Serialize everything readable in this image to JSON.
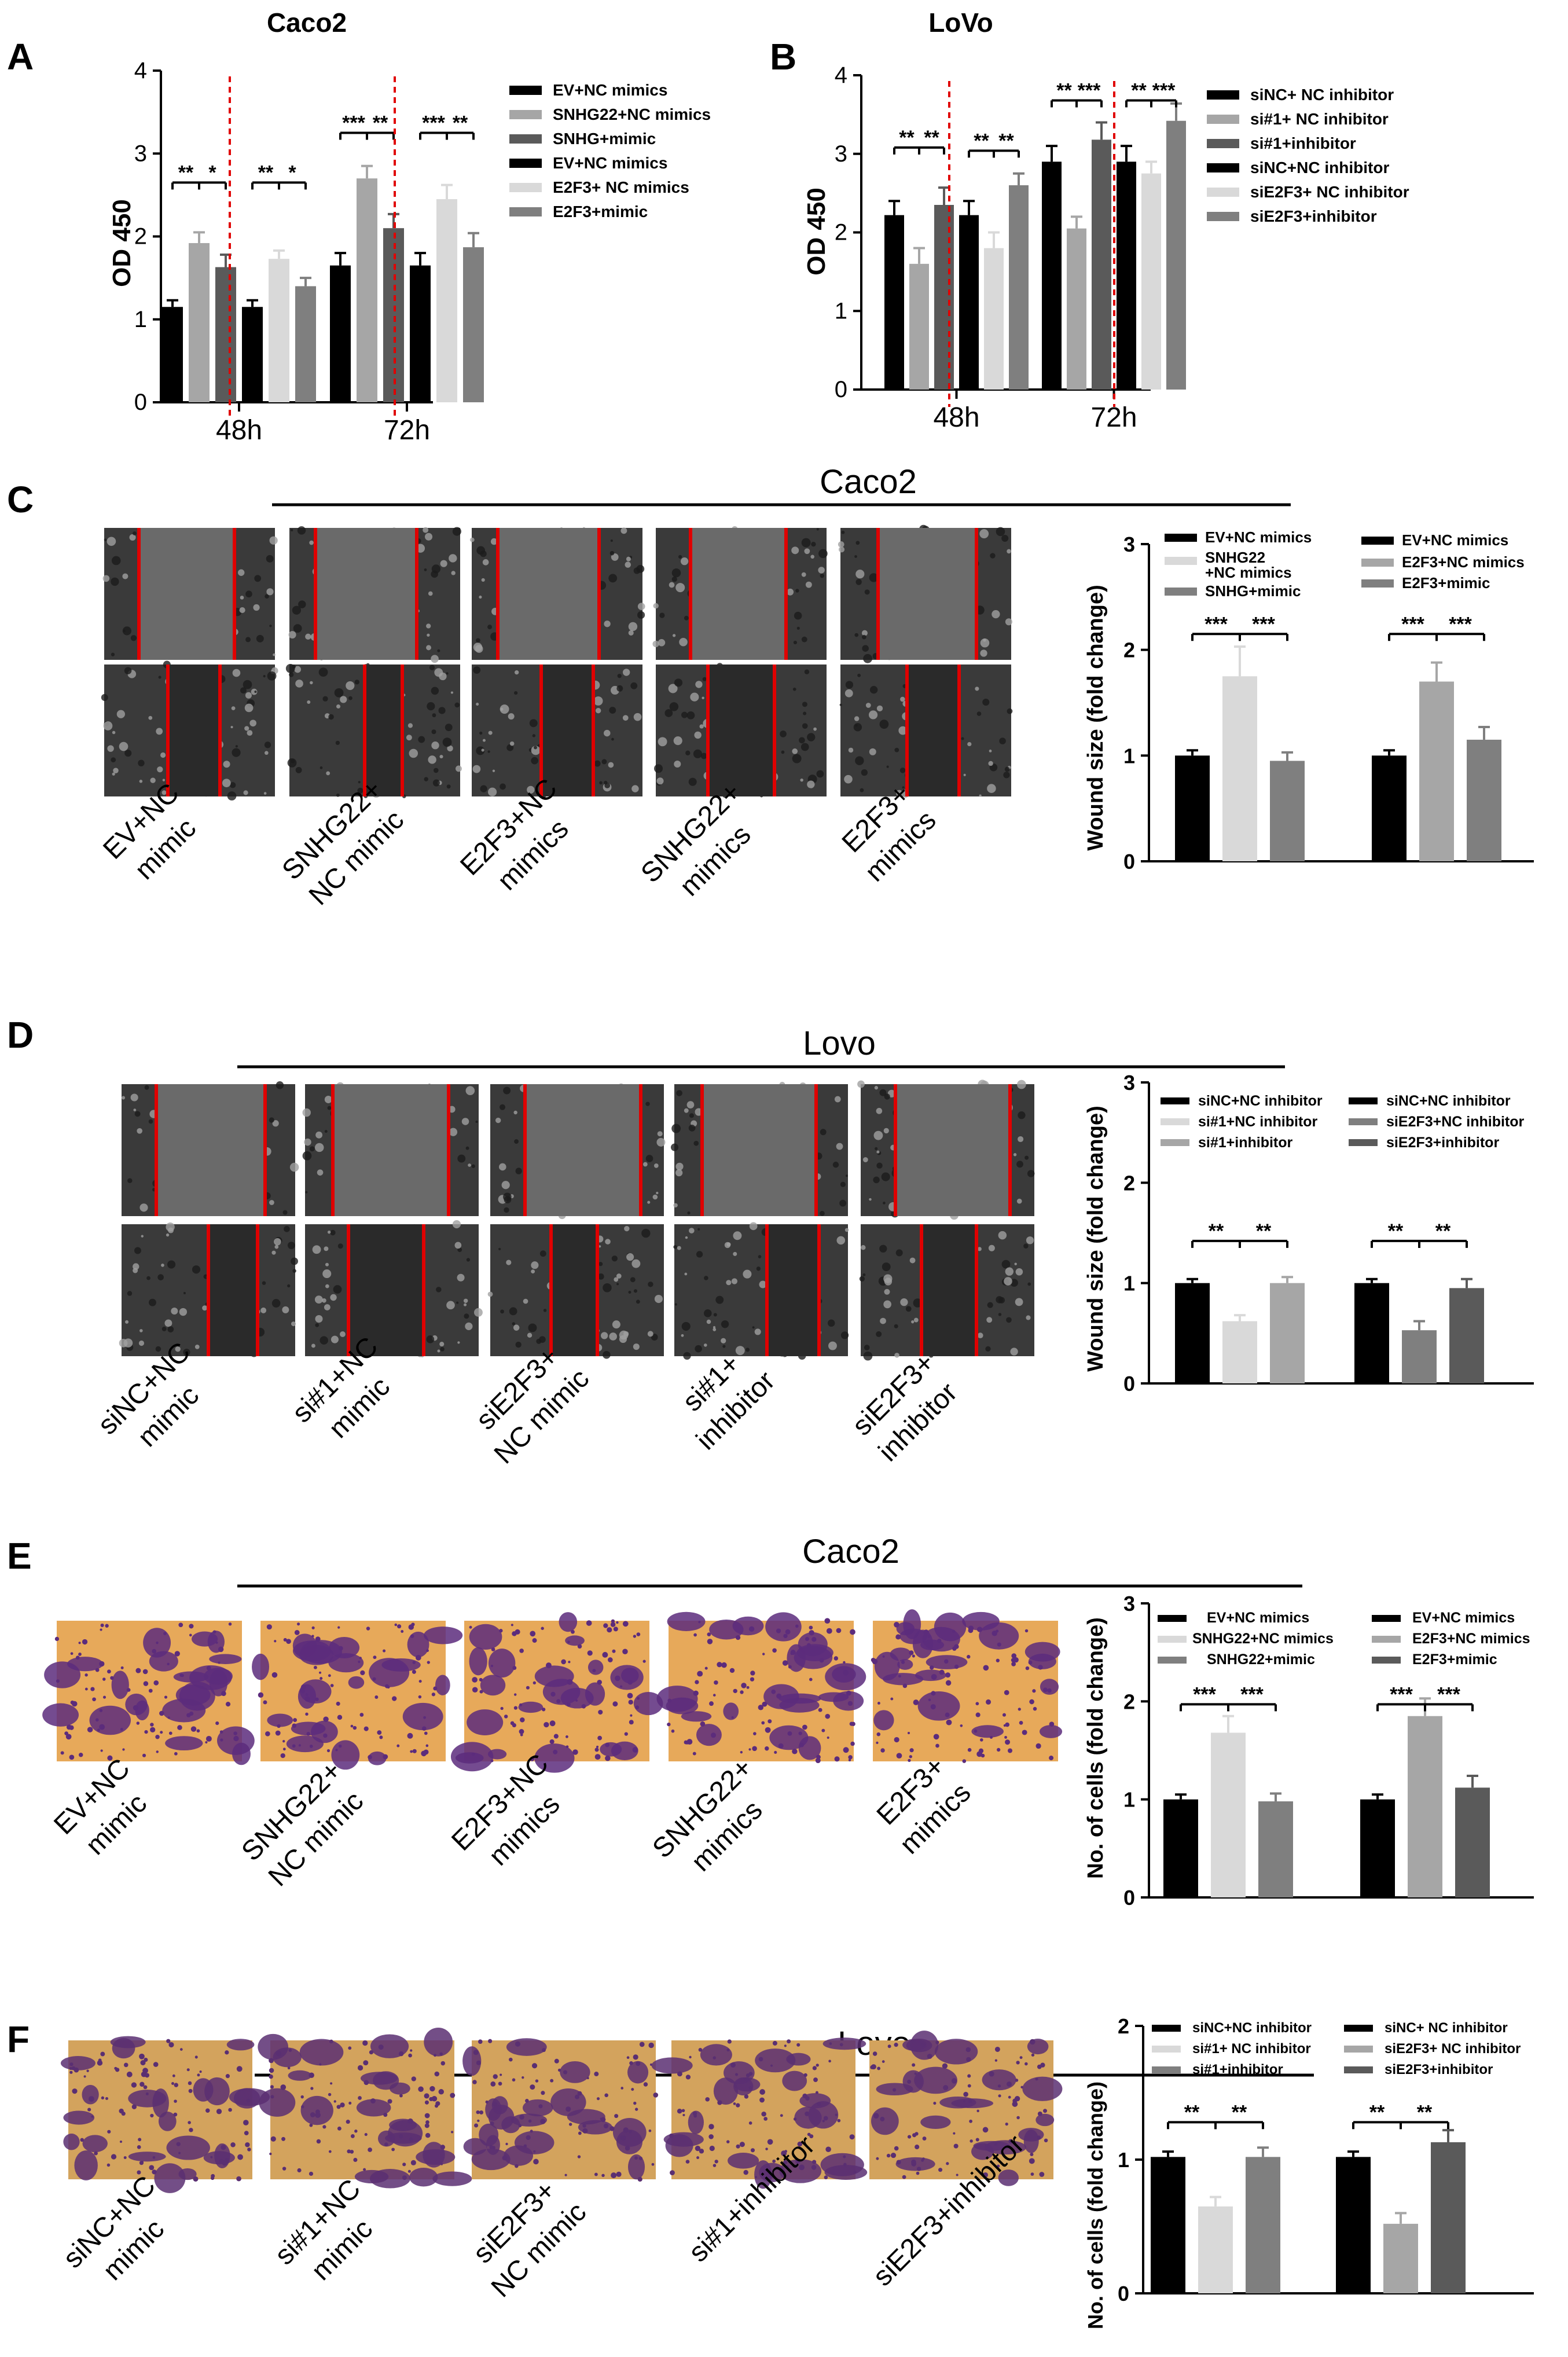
{
  "panels": {
    "A": {
      "letter": "A",
      "title": "Caco2",
      "chart_data": {
        "type": "bar",
        "ylabel": "OD 450",
        "ylim": [
          0,
          4
        ],
        "yticks": [
          "0",
          "1",
          "2",
          "3",
          "4"
        ],
        "groups": [
          {
            "label": "48h",
            "values": [
              1.15,
              1.92,
              1.63,
              1.15,
              1.73,
              1.4
            ],
            "errors": [
              0.08,
              0.13,
              0.15,
              0.08,
              0.1,
              0.1
            ]
          },
          {
            "label": "72h",
            "values": [
              1.65,
              2.7,
              2.1,
              1.65,
              2.45,
              1.87
            ],
            "errors": [
              0.15,
              0.15,
              0.17,
              0.15,
              0.17,
              0.17
            ]
          }
        ],
        "colors": [
          "#000000",
          "#a6a6a6",
          "#5a5a5a",
          "#000000",
          "#d9d9d9",
          "#7f7f7f"
        ],
        "legend": [
          "EV+NC mimics",
          "SNHG22+NC mimics",
          "SNHG+mimic",
          "EV+NC mimics",
          "E2F3+ NC mimics",
          "E2F3+mimic"
        ],
        "sig": [
          {
            "g": 0,
            "a": 0,
            "b": 1,
            "y": 2.65,
            "t": "**"
          },
          {
            "g": 0,
            "a": 1,
            "b": 2,
            "y": 2.65,
            "t": "*"
          },
          {
            "g": 0,
            "a": 3,
            "b": 4,
            "y": 2.65,
            "t": "**"
          },
          {
            "g": 0,
            "a": 4,
            "b": 5,
            "y": 2.65,
            "t": "*"
          },
          {
            "g": 1,
            "a": 0,
            "b": 1,
            "y": 3.25,
            "t": "***"
          },
          {
            "g": 1,
            "a": 1,
            "b": 2,
            "y": 3.25,
            "t": "**"
          },
          {
            "g": 1,
            "a": 3,
            "b": 4,
            "y": 3.25,
            "t": "***"
          },
          {
            "g": 1,
            "a": 4,
            "b": 5,
            "y": 3.25,
            "t": "**"
          }
        ]
      }
    },
    "B": {
      "letter": "B",
      "title": "LoVo",
      "chart_data": {
        "type": "bar",
        "ylabel": "OD 450",
        "ylim": [
          0,
          4
        ],
        "yticks": [
          "0",
          "1",
          "2",
          "3",
          "4"
        ],
        "groups": [
          {
            "label": "48h",
            "values": [
              2.22,
              1.6,
              2.35,
              2.22,
              1.8,
              2.6
            ],
            "errors": [
              0.18,
              0.2,
              0.22,
              0.18,
              0.2,
              0.15
            ]
          },
          {
            "label": "72h",
            "values": [
              2.9,
              2.05,
              3.18,
              2.9,
              2.75,
              3.42
            ],
            "errors": [
              0.2,
              0.15,
              0.22,
              0.2,
              0.15,
              0.22
            ]
          }
        ],
        "colors": [
          "#000000",
          "#a6a6a6",
          "#5a5a5a",
          "#000000",
          "#d9d9d9",
          "#7f7f7f"
        ],
        "legend": [
          "siNC+ NC inhibitor",
          "si#1+ NC inhibitor",
          "si#1+inhibitor",
          "siNC+NC inhibitor",
          "siE2F3+ NC inhibitor",
          "siE2F3+inhibitor"
        ],
        "sig": [
          {
            "g": 0,
            "a": 0,
            "b": 1,
            "y": 3.08,
            "t": "**"
          },
          {
            "g": 0,
            "a": 1,
            "b": 2,
            "y": 3.08,
            "t": "**"
          },
          {
            "g": 0,
            "a": 3,
            "b": 4,
            "y": 3.04,
            "t": "**"
          },
          {
            "g": 0,
            "a": 4,
            "b": 5,
            "y": 3.04,
            "t": "**"
          },
          {
            "g": 1,
            "a": 0,
            "b": 1,
            "y": 3.68,
            "t": "**"
          },
          {
            "g": 1,
            "a": 1,
            "b": 2,
            "y": 3.68,
            "t": "***"
          },
          {
            "g": 1,
            "a": 3,
            "b": 4,
            "y": 3.68,
            "t": "**"
          },
          {
            "g": 1,
            "a": 4,
            "b": 5,
            "y": 3.68,
            "t": "***"
          }
        ]
      }
    },
    "C": {
      "letter": "C",
      "title": "Caco2",
      "captions": [
        [
          "EV+NC",
          "mimic"
        ],
        [
          "SNHG22+",
          "NC mimic"
        ],
        [
          "E2F3+NC",
          "mimics"
        ],
        [
          "SNHG22+",
          "mimics"
        ],
        [
          "E2F3+",
          "mimics"
        ]
      ],
      "chart_data": {
        "type": "bar",
        "ylabel": "Wound size (fold change)",
        "ylim": [
          0,
          3
        ],
        "yticks": [
          "0",
          "1",
          "2",
          "3"
        ],
        "groups": [
          {
            "label": "",
            "values": [
              1.0,
              1.75,
              0.95
            ],
            "errors": [
              0.05,
              0.28,
              0.08
            ]
          },
          {
            "label": "",
            "values": [
              1.0,
              1.7,
              1.15
            ],
            "errors": [
              0.05,
              0.18,
              0.12
            ]
          }
        ],
        "colors": [
          [
            "#000000",
            "#d9d9d9",
            "#7f7f7f"
          ],
          [
            "#000000",
            "#a6a6a6",
            "#7f7f7f"
          ]
        ],
        "legend": [
          [
            "EV+NC mimics",
            "SNHG22 +NC mimics",
            "SNHG+mimic"
          ],
          [
            "EV+NC mimics",
            "E2F3+NC mimics",
            "E2F3+mimic"
          ]
        ],
        "sig": [
          {
            "g": 0,
            "a": 0,
            "b": 1,
            "y": 2.15,
            "t": "***"
          },
          {
            "g": 0,
            "a": 1,
            "b": 2,
            "y": 2.15,
            "t": "***"
          },
          {
            "g": 1,
            "a": 0,
            "b": 1,
            "y": 2.15,
            "t": "***"
          },
          {
            "g": 1,
            "a": 1,
            "b": 2,
            "y": 2.15,
            "t": "***"
          }
        ]
      }
    },
    "D": {
      "letter": "D",
      "title": "Lovo",
      "captions": [
        [
          "siNC+NC",
          "mimic"
        ],
        [
          "si#1+NC",
          "mimic"
        ],
        [
          "siE2F3+",
          "NC mimic"
        ],
        [
          "si#1+",
          "inhibitor"
        ],
        [
          "siE2F3+",
          "inhibitor"
        ]
      ],
      "chart_data": {
        "type": "bar",
        "ylabel": "Wound size (fold change)",
        "ylim": [
          0,
          3
        ],
        "yticks": [
          "0",
          "1",
          "2",
          "3"
        ],
        "groups": [
          {
            "label": "",
            "values": [
              1.0,
              0.62,
              1.0
            ],
            "errors": [
              0.04,
              0.06,
              0.06
            ]
          },
          {
            "label": "",
            "values": [
              1.0,
              0.53,
              0.95
            ],
            "errors": [
              0.04,
              0.09,
              0.09
            ]
          }
        ],
        "colors": [
          [
            "#000000",
            "#d9d9d9",
            "#a6a6a6"
          ],
          [
            "#000000",
            "#7f7f7f",
            "#5a5a5a"
          ]
        ],
        "legend": [
          [
            "siNC+NC inhibitor",
            "si#1+NC inhibitor",
            "si#1+inhibitor"
          ],
          [
            "siNC+NC inhibitor",
            "siE2F3+NC inhibitor",
            "siE2F3+inhibitor"
          ]
        ],
        "sig": [
          {
            "g": 0,
            "a": 0,
            "b": 1,
            "y": 1.42,
            "t": "**"
          },
          {
            "g": 0,
            "a": 1,
            "b": 2,
            "y": 1.42,
            "t": "**"
          },
          {
            "g": 1,
            "a": 0,
            "b": 1,
            "y": 1.42,
            "t": "**"
          },
          {
            "g": 1,
            "a": 1,
            "b": 2,
            "y": 1.42,
            "t": "**"
          }
        ]
      }
    },
    "E": {
      "letter": "E",
      "title": "Caco2",
      "captions": [
        [
          "EV+NC",
          "mimic"
        ],
        [
          "SNHG22+",
          "NC mimic"
        ],
        [
          "E2F3+NC",
          "mimics"
        ],
        [
          "SNHG22+",
          "mimics"
        ],
        [
          "E2F3+",
          "mimics"
        ]
      ],
      "chart_data": {
        "type": "bar",
        "ylabel": "No. of cells (fold change)",
        "ylim": [
          0,
          3
        ],
        "yticks": [
          "0",
          "1",
          "2",
          "3"
        ],
        "groups": [
          {
            "label": "",
            "values": [
              1.0,
              1.68,
              0.98
            ],
            "errors": [
              0.05,
              0.17,
              0.08
            ]
          },
          {
            "label": "",
            "values": [
              1.0,
              1.85,
              1.12
            ],
            "errors": [
              0.05,
              0.18,
              0.12
            ]
          }
        ],
        "colors": [
          [
            "#000000",
            "#d9d9d9",
            "#7f7f7f"
          ],
          [
            "#000000",
            "#a6a6a6",
            "#5a5a5a"
          ]
        ],
        "legend": [
          [
            "EV+NC mimics",
            "SNHG22+NC mimics",
            "SNHG22+mimic"
          ],
          [
            "EV+NC mimics",
            "E2F3+NC mimics",
            "E2F3+mimic"
          ]
        ],
        "sig": [
          {
            "g": 0,
            "a": 0,
            "b": 1,
            "y": 1.97,
            "t": "***"
          },
          {
            "g": 0,
            "a": 1,
            "b": 2,
            "y": 1.97,
            "t": "***"
          },
          {
            "g": 1,
            "a": 0,
            "b": 1,
            "y": 1.97,
            "t": "***"
          },
          {
            "g": 1,
            "a": 1,
            "b": 2,
            "y": 1.97,
            "t": "***"
          }
        ]
      }
    },
    "F": {
      "letter": "F",
      "title": "Lovo",
      "captions": [
        [
          "siNC+NC",
          "mimic"
        ],
        [
          "si#1+NC",
          "mimic"
        ],
        [
          "siE2F3+",
          "NC mimic"
        ],
        [
          "si#1+inhibitor"
        ],
        [
          "siE2F3+inhibitor"
        ]
      ],
      "chart_data": {
        "type": "bar",
        "ylabel": "No. of cells (fold change)",
        "ylim": [
          0,
          2
        ],
        "yticks": [
          "0",
          "1",
          "2"
        ],
        "groups": [
          {
            "label": "",
            "values": [
              1.02,
              0.65,
              1.02
            ],
            "errors": [
              0.04,
              0.07,
              0.07
            ]
          },
          {
            "label": "",
            "values": [
              1.02,
              0.52,
              1.13
            ],
            "errors": [
              0.04,
              0.08,
              0.09
            ]
          }
        ],
        "colors": [
          [
            "#000000",
            "#d9d9d9",
            "#7f7f7f"
          ],
          [
            "#000000",
            "#a6a6a6",
            "#5a5a5a"
          ]
        ],
        "legend": [
          [
            "siNC+NC inhibitor",
            "si#1+ NC inhibitor",
            "si#1+inhibitor"
          ],
          [
            "siNC+ NC inhibitor",
            "siE2F3+ NC inhibitor",
            "siE2F3+inhibitor"
          ]
        ],
        "sig": [
          {
            "g": 0,
            "a": 0,
            "b": 1,
            "y": 1.28,
            "t": "**"
          },
          {
            "g": 0,
            "a": 1,
            "b": 2,
            "y": 1.28,
            "t": "**"
          },
          {
            "g": 1,
            "a": 0,
            "b": 1,
            "y": 1.28,
            "t": "**"
          },
          {
            "g": 1,
            "a": 1,
            "b": 2,
            "y": 1.28,
            "t": "**"
          }
        ]
      }
    }
  }
}
